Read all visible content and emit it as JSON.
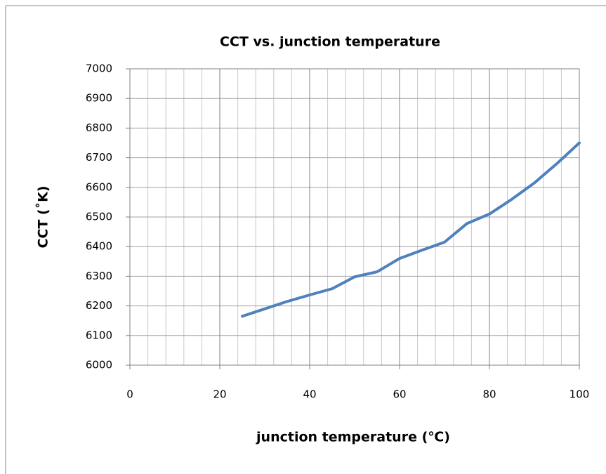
{
  "chart_data": {
    "type": "line",
    "title": "CCT  vs.  junction temperature",
    "x_label": "junction temperature (℃)",
    "y_label": "CCT (˚K)",
    "x": [
      25,
      30,
      35,
      40,
      45,
      50,
      55,
      60,
      65,
      70,
      75,
      80,
      85,
      90,
      95,
      100
    ],
    "series": [
      {
        "name": "CCT",
        "color": "#4f81bd",
        "values": [
          6165,
          6190,
          6215,
          6237,
          6258,
          6298,
          6315,
          6360,
          6388,
          6415,
          6478,
          6510,
          6560,
          6615,
          6680,
          6750
        ]
      }
    ],
    "xlim": [
      0,
      100
    ],
    "xticks": [
      0,
      20,
      40,
      60,
      80,
      100
    ],
    "minor_xticks": [
      4,
      8,
      12,
      16,
      24,
      28,
      32,
      36,
      44,
      48,
      52,
      56,
      64,
      68,
      72,
      76,
      84,
      88,
      92,
      96
    ],
    "ylim": [
      6000,
      7000
    ],
    "yticks": [
      6000,
      6100,
      6200,
      6300,
      6400,
      6500,
      6600,
      6700,
      6800,
      6900,
      7000
    ],
    "grid": true
  }
}
